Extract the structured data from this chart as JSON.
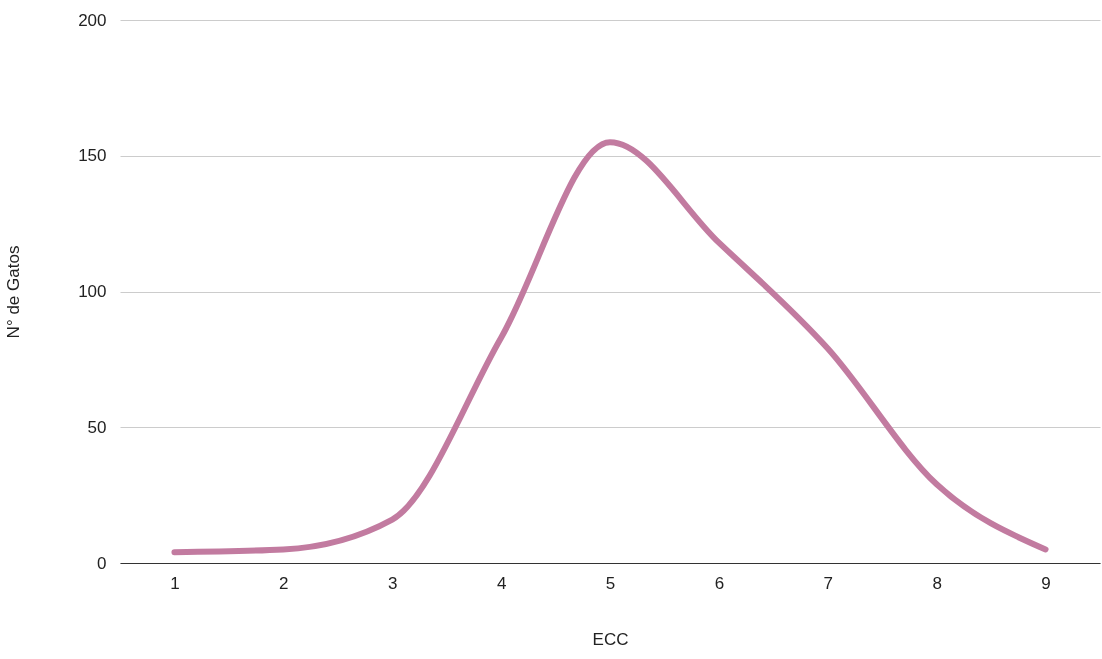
{
  "chart_data": {
    "type": "line",
    "xlabel": "ECC",
    "ylabel": "N° de Gatos",
    "categories": [
      "1",
      "2",
      "3",
      "4",
      "5",
      "6",
      "7",
      "8",
      "9"
    ],
    "series": [
      {
        "color": "#c27ba0",
        "values": [
          4,
          5,
          16,
          83,
          155,
          118,
          79,
          29,
          5
        ]
      }
    ],
    "ylim": [
      0,
      200
    ],
    "yticks": [
      0,
      50,
      100,
      150,
      200
    ],
    "grid": "y",
    "marker": "none",
    "line_style": "solid"
  }
}
